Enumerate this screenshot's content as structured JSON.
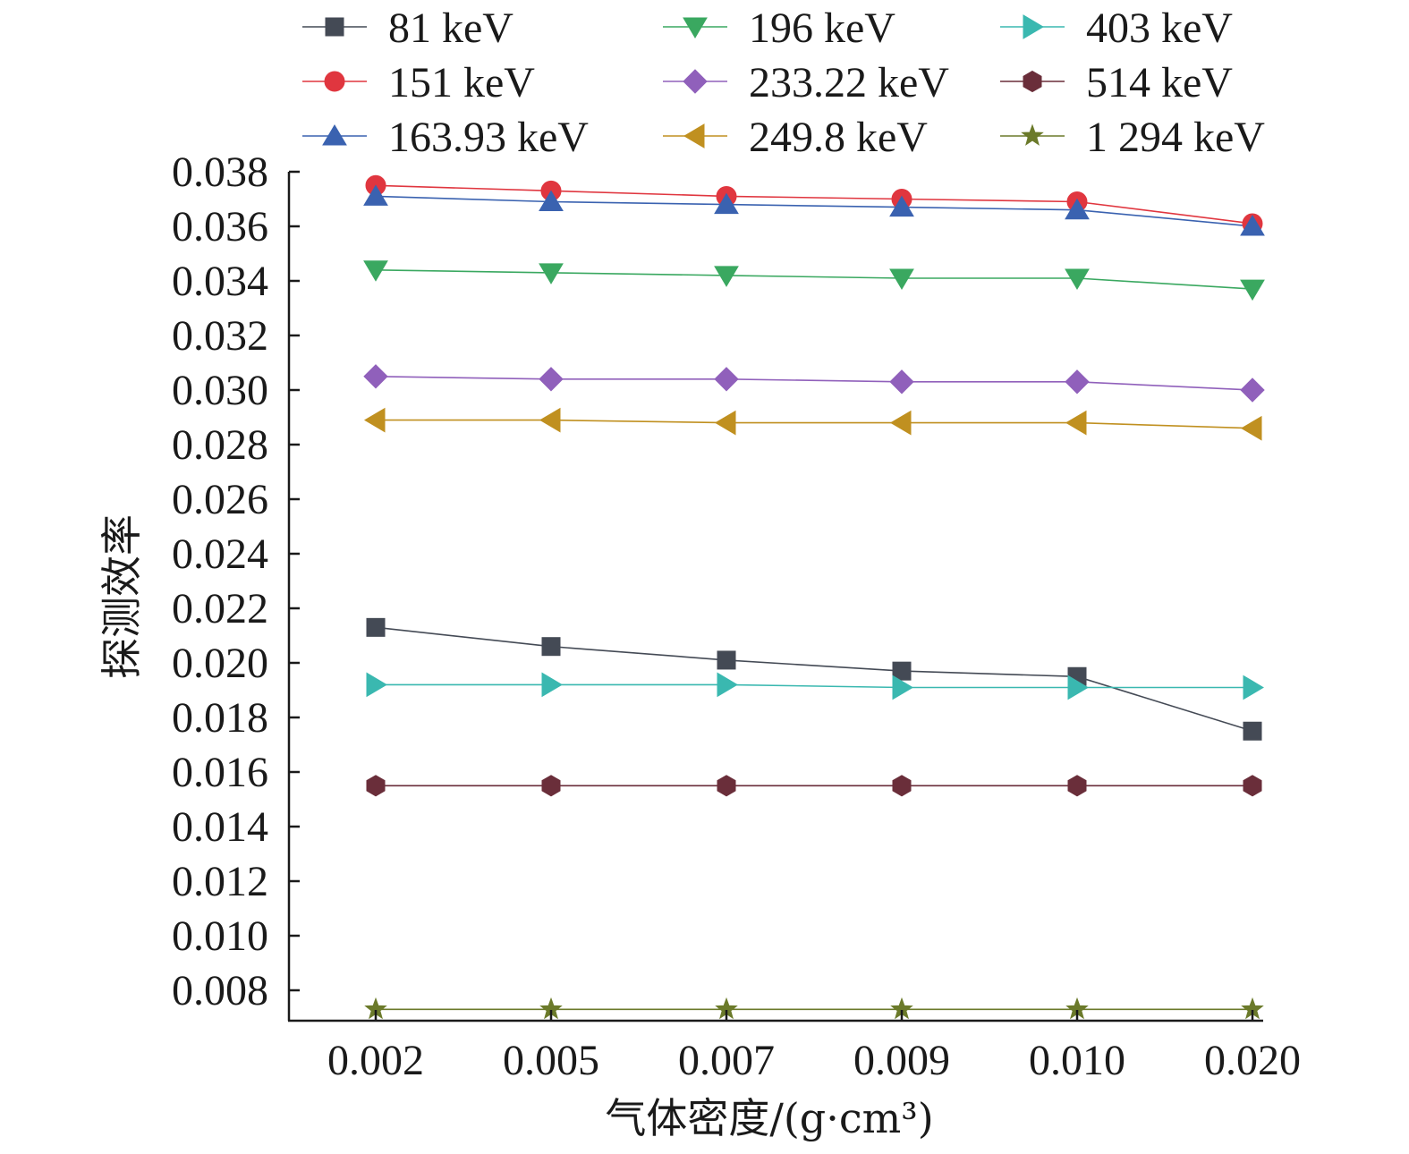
{
  "chart_data": {
    "type": "line",
    "title": "",
    "xlabel": "气体密度/(g·cm³)",
    "ylabel": "探测效率",
    "categories": [
      "0.002",
      "0.005",
      "0.007",
      "0.009",
      "0.010",
      "0.020"
    ],
    "ylim": [
      0.0073,
      0.038
    ],
    "yticks": [
      "0.038",
      "0.036",
      "0.034",
      "0.032",
      "0.030",
      "0.028",
      "0.026",
      "0.024",
      "0.022",
      "0.020",
      "0.018",
      "0.016",
      "0.014",
      "0.012",
      "0.010",
      "0.008"
    ],
    "legend_position": "top",
    "grid": false,
    "series": [
      {
        "name": "81 keV",
        "marker": "square",
        "color": "#444a55",
        "values": [
          0.0213,
          0.0206,
          0.0201,
          0.0197,
          0.0195,
          0.0175
        ]
      },
      {
        "name": "151 keV",
        "marker": "circle",
        "color": "#e0363f",
        "values": [
          0.0375,
          0.0373,
          0.0371,
          0.037,
          0.0369,
          0.0361
        ]
      },
      {
        "name": "163.93 keV",
        "marker": "triangle-up",
        "color": "#3a62b0",
        "values": [
          0.0371,
          0.0369,
          0.0368,
          0.0367,
          0.0366,
          0.036
        ]
      },
      {
        "name": "196 keV",
        "marker": "triangle-down",
        "color": "#3aa860",
        "values": [
          0.0344,
          0.0343,
          0.0342,
          0.0341,
          0.0341,
          0.0337
        ]
      },
      {
        "name": "233.22 keV",
        "marker": "diamond",
        "color": "#9060bb",
        "values": [
          0.0305,
          0.0304,
          0.0304,
          0.0303,
          0.0303,
          0.03
        ]
      },
      {
        "name": "249.8 keV",
        "marker": "triangle-left",
        "color": "#c09020",
        "values": [
          0.0289,
          0.0289,
          0.0288,
          0.0288,
          0.0288,
          0.0286
        ]
      },
      {
        "name": "403 keV",
        "marker": "triangle-right",
        "color": "#3ab8b0",
        "values": [
          0.0192,
          0.0192,
          0.0192,
          0.0191,
          0.0191,
          0.0191
        ]
      },
      {
        "name": "514 keV",
        "marker": "hexagon",
        "color": "#6a2e3a",
        "values": [
          0.0155,
          0.0155,
          0.0155,
          0.0155,
          0.0155,
          0.0155
        ]
      },
      {
        "name": "1 294 keV",
        "marker": "star",
        "color": "#6b7a2a",
        "values": [
          0.0073,
          0.0073,
          0.0073,
          0.0073,
          0.0073,
          0.0073
        ]
      }
    ]
  }
}
